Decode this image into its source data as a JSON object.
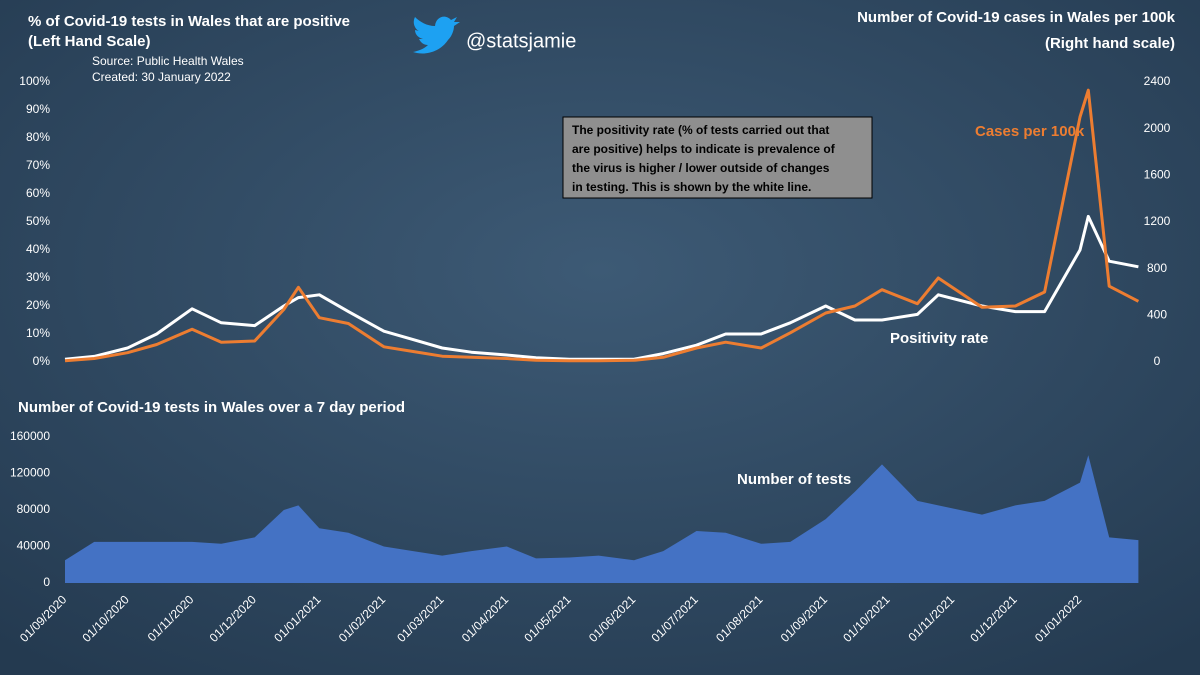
{
  "chart_data": [
    {
      "type": "line",
      "ylabel": [
        "% of Covid-19 tests in Wales that are positive",
        "(Left Hand Scale)"
      ],
      "y2label": [
        "Number of Covid-19 cases in Wales per 100k",
        "(Right hand scale)"
      ],
      "source": "Source: Public Health Wales",
      "created": "Created: 30 January 2022",
      "credit": "@statsjamie",
      "annotation": [
        "The positivity rate (% of tests carried out that",
        "are positive) helps to indicate is prevalence of",
        "the virus is higher / lower outside of changes",
        "in testing. This is shown by the white line."
      ],
      "x": [
        "01/09/2020",
        "15/09/2020",
        "01/10/2020",
        "15/10/2020",
        "01/11/2020",
        "15/11/2020",
        "01/12/2020",
        "15/12/2020",
        "22/12/2020",
        "01/01/2021",
        "15/01/2021",
        "01/02/2021",
        "15/02/2021",
        "01/03/2021",
        "15/03/2021",
        "01/04/2021",
        "15/04/2021",
        "01/05/2021",
        "15/05/2021",
        "01/06/2021",
        "15/06/2021",
        "01/07/2021",
        "15/07/2021",
        "01/08/2021",
        "15/08/2021",
        "01/09/2021",
        "15/09/2021",
        "28/09/2021",
        "15/10/2021",
        "25/10/2021",
        "15/11/2021",
        "01/12/2021",
        "15/12/2021",
        "01/01/2022",
        "05/01/2022",
        "15/01/2022",
        "29/01/2022"
      ],
      "series": [
        {
          "name": "Positivity rate",
          "color": "#ffffff",
          "values": [
            1,
            2,
            5,
            10,
            19,
            14,
            13,
            20,
            23,
            24,
            18,
            11,
            8,
            5,
            3.5,
            2.5,
            1.5,
            1,
            1,
            1,
            3,
            6,
            10,
            10,
            14,
            20,
            15,
            15,
            17,
            24,
            20,
            18,
            18,
            40,
            52,
            36,
            34
          ]
        },
        {
          "name": "Cases per 100k",
          "color": "#ed7d31",
          "axis": "y2",
          "values": [
            10,
            30,
            80,
            150,
            280,
            170,
            180,
            450,
            640,
            380,
            330,
            130,
            90,
            50,
            40,
            30,
            15,
            10,
            10,
            15,
            40,
            120,
            170,
            120,
            250,
            420,
            480,
            620,
            500,
            720,
            470,
            480,
            600,
            2100,
            2330,
            650,
            520
          ]
        }
      ],
      "ylim": [
        0,
        100
      ],
      "yticks": [
        {
          "value": 0,
          "label": "0%"
        },
        {
          "value": 10,
          "label": "10%"
        },
        {
          "value": 20,
          "label": "20%"
        },
        {
          "value": 30,
          "label": "30%"
        },
        {
          "value": 40,
          "label": "40%"
        },
        {
          "value": 50,
          "label": "50%"
        },
        {
          "value": 60,
          "label": "60%"
        },
        {
          "value": 70,
          "label": "70%"
        },
        {
          "value": 80,
          "label": "80%"
        },
        {
          "value": 90,
          "label": "90%"
        },
        {
          "value": 100,
          "label": "100%"
        }
      ],
      "y2lim": [
        0,
        2400
      ],
      "y2ticks": [
        0,
        400,
        800,
        1200,
        1600,
        2000,
        2400
      ]
    },
    {
      "type": "area",
      "title": "Number of Covid-19 tests in Wales over a 7 day period",
      "x": [
        "01/09/2020",
        "15/09/2020",
        "01/10/2020",
        "15/10/2020",
        "01/11/2020",
        "15/11/2020",
        "01/12/2020",
        "15/12/2020",
        "22/12/2020",
        "01/01/2021",
        "15/01/2021",
        "01/02/2021",
        "15/02/2021",
        "01/03/2021",
        "15/03/2021",
        "01/04/2021",
        "15/04/2021",
        "01/05/2021",
        "15/05/2021",
        "01/06/2021",
        "15/06/2021",
        "01/07/2021",
        "15/07/2021",
        "01/08/2021",
        "15/08/2021",
        "01/09/2021",
        "15/09/2021",
        "28/09/2021",
        "15/10/2021",
        "25/10/2021",
        "15/11/2021",
        "01/12/2021",
        "15/12/2021",
        "01/01/2022",
        "05/01/2022",
        "15/01/2022",
        "29/01/2022"
      ],
      "series": [
        {
          "name": "Number of tests",
          "color": "#4472c4",
          "values": [
            25000,
            45000,
            45000,
            45000,
            45000,
            43000,
            50000,
            80000,
            85000,
            60000,
            55000,
            40000,
            35000,
            30000,
            35000,
            40000,
            27000,
            28000,
            30000,
            25000,
            35000,
            57000,
            55000,
            43000,
            45000,
            70000,
            100000,
            130000,
            90000,
            85000,
            75000,
            85000,
            90000,
            110000,
            140000,
            50000,
            47000
          ]
        }
      ],
      "ylim": [
        0,
        160000
      ],
      "yticks": [
        0,
        40000,
        80000,
        120000,
        160000
      ],
      "xticks": [
        "01/09/2020",
        "01/10/2020",
        "01/11/2020",
        "01/12/2020",
        "01/01/2021",
        "01/02/2021",
        "01/03/2021",
        "01/04/2021",
        "01/05/2021",
        "01/06/2021",
        "01/07/2021",
        "01/08/2021",
        "01/09/2021",
        "01/10/2021",
        "01/11/2021",
        "01/12/2021",
        "01/01/2022"
      ]
    }
  ]
}
